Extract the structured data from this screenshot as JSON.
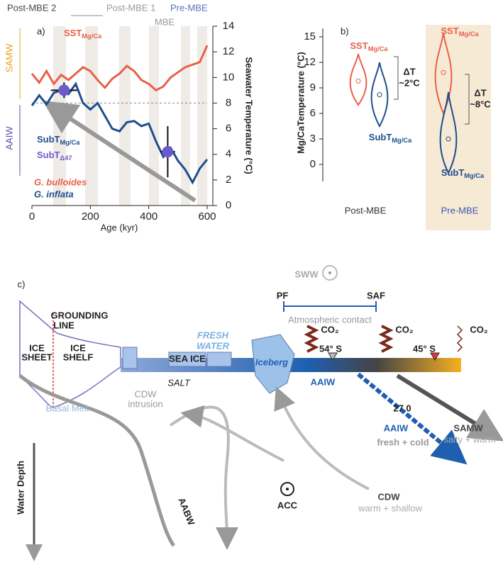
{
  "chart_data": [
    {
      "type": "line",
      "panel": "a)",
      "xlabel": "Age (kyr)",
      "ylabel": "Seawater Temperature (°C)",
      "xlim": [
        0,
        600
      ],
      "xticks": [
        0,
        200,
        400,
        600
      ],
      "ylim": [
        0,
        14
      ],
      "yticks": [
        0,
        2,
        4,
        6,
        8,
        10,
        12,
        14
      ],
      "periods": [
        "Post-MBE 2",
        "Post-MBE 1",
        "Pre-MBE",
        "MBE"
      ],
      "water_masses": [
        "SAMW",
        "AAIW"
      ],
      "reference_line": 8,
      "x": [
        0,
        25,
        50,
        75,
        100,
        125,
        150,
        175,
        200,
        225,
        250,
        275,
        300,
        325,
        350,
        375,
        400,
        425,
        450,
        475,
        500,
        525,
        550,
        575,
        600
      ],
      "series": [
        {
          "name": "SST",
          "sub": "Mg/Ca",
          "species": "G. bulloides",
          "color": "#e8604c",
          "values": [
            10.3,
            9.6,
            10.5,
            9.5,
            10.2,
            9.8,
            10.3,
            10.8,
            10.5,
            9.8,
            9.2,
            9.9,
            10.3,
            10.9,
            10.5,
            9.8,
            9.5,
            9.0,
            9.3,
            10.0,
            10.4,
            10.8,
            11.0,
            11.2,
            12.5
          ]
        },
        {
          "name": "SubT",
          "sub": "Mg/Ca",
          "species": "G. inflata",
          "color": "#1f4e8c",
          "values": [
            7.8,
            8.6,
            7.9,
            8.8,
            9.0,
            8.7,
            9.5,
            8.0,
            7.5,
            8.0,
            7.0,
            6.0,
            5.8,
            6.5,
            6.6,
            6.2,
            6.4,
            5.0,
            3.8,
            4.5,
            3.5,
            2.8,
            1.8,
            2.9,
            3.6
          ]
        }
      ],
      "points": {
        "name": "SubT",
        "sub": "Δ47",
        "color": "#6a5acd",
        "x": [
          110,
          465
        ],
        "xerr": [
          45,
          25
        ],
        "y": [
          9.0,
          4.2
        ],
        "yerr": [
          0.6,
          2.0
        ]
      }
    },
    {
      "type": "violin",
      "panel": "b)",
      "ylabel": "Mg/CaTemperature (°C)",
      "ylim": [
        -2,
        16
      ],
      "yticks": [
        0,
        3,
        6,
        9,
        12,
        15
      ],
      "categories": [
        "Post-MBE",
        "Pre-MBE"
      ],
      "series": [
        {
          "name": "SST",
          "sub": "Mg/Ca",
          "color": "#e8604c",
          "values": [
            9.8,
            10.8
          ],
          "min": [
            7,
            6
          ],
          "max": [
            13,
            15.5
          ]
        },
        {
          "name": "SubT",
          "sub": "Mg/Ca",
          "color": "#1f4e8c",
          "values": [
            8.2,
            3.0
          ],
          "min": [
            4.5,
            -1
          ],
          "max": [
            12,
            8.5
          ]
        }
      ],
      "annotations": [
        [
          "ΔT",
          "~2°C"
        ],
        [
          "ΔT",
          "~8°C"
        ]
      ]
    }
  ],
  "diagram": {
    "panel": "c)",
    "sww": "SWW",
    "pf": "PF",
    "saf": "SAF",
    "atmospheric": "Atmospheric contact",
    "co2": "CO₂",
    "grounding": [
      "GROUNDING",
      "LINE"
    ],
    "ice_sheet": [
      "ICE",
      "SHEET"
    ],
    "ice_shelf": [
      "ICE",
      "SHELF"
    ],
    "fresh_water": [
      "FRESH",
      "WATER"
    ],
    "sea_ice": "SEA ICE",
    "iceberg": "Iceberg",
    "lat1": "54° S",
    "lat2": "45° S",
    "salt": "SALT",
    "aaiw": "AAIW",
    "basal_melt": "Basal Melt",
    "cdw_intrusion": [
      "CDW",
      "intrusion"
    ],
    "isopycnal": "27.0",
    "fresh_cold": "fresh + cold",
    "samw": "SAMW",
    "salty_warm": "salty + warm",
    "water_depth": "Water Depth",
    "aabw": "AABW",
    "acc": "ACC",
    "cdw": "CDW",
    "warm_shallow": "warm + shallow"
  }
}
